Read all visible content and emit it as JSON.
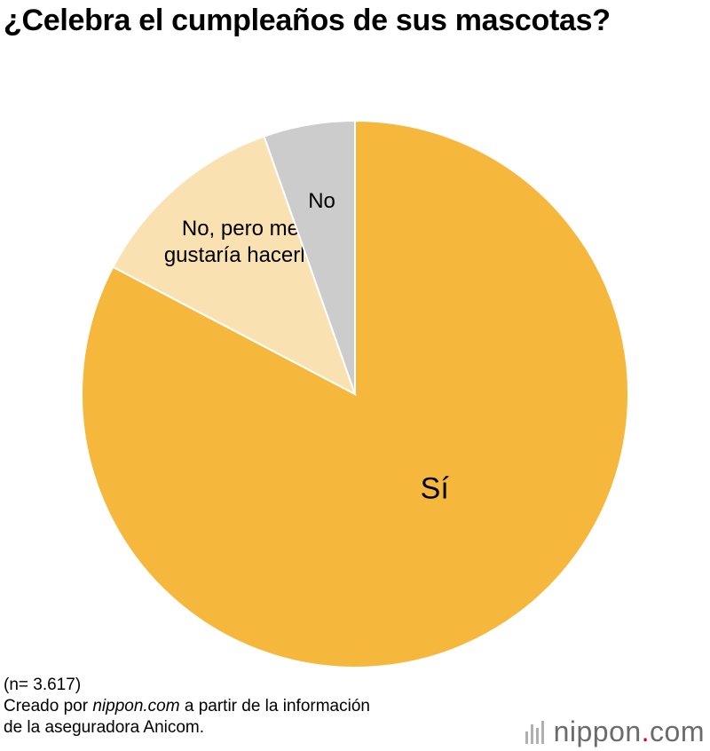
{
  "chart_data": {
    "type": "pie",
    "title": "¿Celebra el cumpleaños de sus mascotas?",
    "start": "12 o'clock",
    "direction": "clockwise",
    "slices": [
      {
        "label": "Sí",
        "value": 82.7,
        "color": "#f5b83d",
        "label_lines": [
          "Sí"
        ]
      },
      {
        "label": "No, pero me gustaría hacerlo",
        "value": 11.9,
        "color": "#f9e1b1",
        "label_lines": [
          "No, pero me",
          "gustaría hacerlo"
        ]
      },
      {
        "label": "No",
        "value": 5.4,
        "color": "#cccccc",
        "label_lines": [
          "No"
        ]
      }
    ]
  },
  "footer": {
    "sample": "(n= 3.617)",
    "source_prefix": "Creado por ",
    "source_site": "nippon.com",
    "source_suffix": " a partir de la información",
    "source_line2": "de la aseguradora Anicom."
  },
  "logo": {
    "name": "nippon",
    "dot": ".",
    "tld": "com"
  }
}
